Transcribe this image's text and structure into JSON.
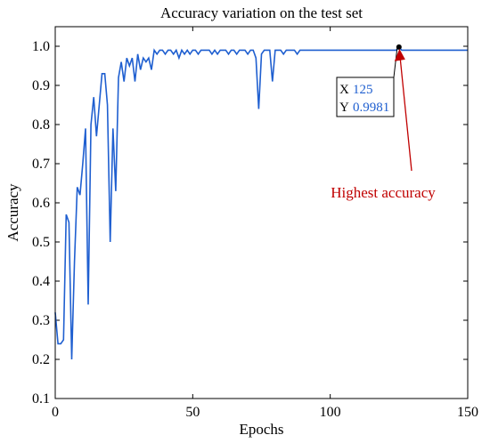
{
  "chart_data": {
    "type": "line",
    "title": "Accuracy variation on the test set",
    "xlabel": "Epochs",
    "ylabel": "Accuracy",
    "xlim": [
      0,
      150
    ],
    "ylim": [
      0.1,
      1.05
    ],
    "x_ticks": [
      "0",
      "50",
      "100",
      "150"
    ],
    "y_ticks": [
      "0.1",
      "0.2",
      "0.3",
      "0.4",
      "0.5",
      "0.6",
      "0.7",
      "0.8",
      "0.9",
      "1.0"
    ],
    "grid": false,
    "line_color": "#1f5fd0",
    "series": [
      {
        "x": [
          0,
          1,
          2,
          3,
          4,
          5,
          6,
          7,
          8,
          9,
          10,
          11,
          12,
          13,
          14,
          15,
          16,
          17,
          18,
          19,
          20,
          21,
          22,
          23,
          24,
          25,
          26,
          27,
          28,
          29,
          30,
          31,
          32,
          33,
          34,
          35,
          36,
          37,
          38,
          39,
          40,
          41,
          42,
          43,
          44,
          45,
          46,
          47,
          48,
          49,
          50,
          51,
          52,
          53,
          54,
          55,
          56,
          57,
          58,
          59,
          60,
          61,
          62,
          63,
          64,
          65,
          66,
          67,
          68,
          69,
          70,
          71,
          72,
          73,
          74,
          75,
          76,
          77,
          78,
          79,
          80,
          81,
          82,
          83,
          84,
          85,
          86,
          87,
          88,
          89,
          90,
          91,
          92,
          93,
          94,
          95,
          96,
          97,
          98,
          99,
          100,
          101,
          102,
          103,
          104,
          105,
          106,
          107,
          108,
          109,
          110,
          111,
          112,
          113,
          114,
          115,
          116,
          117,
          118,
          119,
          120,
          121,
          122,
          123,
          124,
          125,
          126,
          127,
          128,
          129,
          130,
          131,
          132,
          133,
          134,
          135,
          136,
          137,
          138,
          139,
          140,
          141,
          142,
          143,
          144,
          145,
          146,
          147,
          148,
          149,
          150
        ],
        "y": [
          0.32,
          0.24,
          0.24,
          0.25,
          0.57,
          0.55,
          0.2,
          0.45,
          0.64,
          0.62,
          0.7,
          0.79,
          0.34,
          0.8,
          0.87,
          0.77,
          0.85,
          0.93,
          0.93,
          0.85,
          0.5,
          0.79,
          0.63,
          0.92,
          0.96,
          0.91,
          0.97,
          0.95,
          0.97,
          0.91,
          0.98,
          0.94,
          0.97,
          0.96,
          0.97,
          0.94,
          0.99,
          0.98,
          0.99,
          0.99,
          0.98,
          0.99,
          0.99,
          0.98,
          0.99,
          0.97,
          0.99,
          0.98,
          0.99,
          0.98,
          0.99,
          0.99,
          0.98,
          0.99,
          0.99,
          0.99,
          0.99,
          0.98,
          0.99,
          0.98,
          0.99,
          0.99,
          0.99,
          0.98,
          0.99,
          0.99,
          0.98,
          0.99,
          0.99,
          0.99,
          0.98,
          0.99,
          0.99,
          0.97,
          0.84,
          0.98,
          0.99,
          0.99,
          0.99,
          0.91,
          0.99,
          0.99,
          0.99,
          0.98,
          0.99,
          0.99,
          0.99,
          0.99,
          0.98,
          0.99,
          0.99,
          0.99,
          0.99,
          0.99,
          0.99,
          0.99,
          0.99,
          0.99,
          0.99,
          0.99,
          0.99,
          0.99,
          0.99,
          0.99,
          0.99,
          0.99,
          0.99,
          0.99,
          0.99,
          0.99,
          0.99,
          0.99,
          0.99,
          0.99,
          0.99,
          0.99,
          0.99,
          0.99,
          0.99,
          0.99,
          0.99,
          0.99,
          0.99,
          0.99,
          0.99,
          0.9981,
          0.99,
          0.99,
          0.99,
          0.99,
          0.99,
          0.99,
          0.99,
          0.99,
          0.99,
          0.99,
          0.99,
          0.99,
          0.99,
          0.99,
          0.99,
          0.99,
          0.99,
          0.99,
          0.99,
          0.99,
          0.99,
          0.99,
          0.99,
          0.99,
          0.99
        ]
      }
    ],
    "datatip": {
      "x_label": "X",
      "x_value": "125",
      "y_label": "Y",
      "y_value": "0.9981",
      "x": 125,
      "y": 0.9981
    },
    "annotation": {
      "text": "Highest accuracy",
      "color": "#c00000",
      "x": 125,
      "y": 0.9981
    }
  }
}
